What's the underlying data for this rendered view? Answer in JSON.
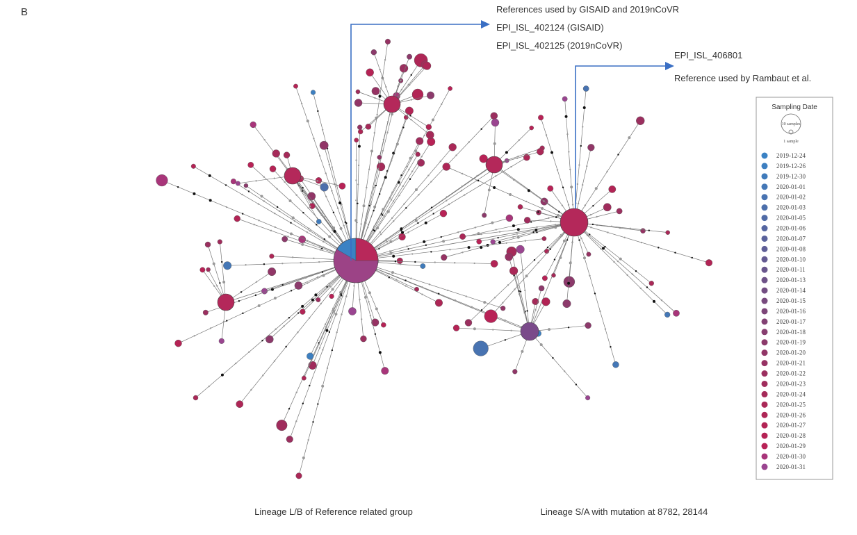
{
  "panel_label": "B",
  "annotations": {
    "gisaid_title": "References used by GISAID and 2019nCoVR",
    "gisaid_ref": "EPI_ISL_402124 (GISAID)",
    "ncovr_ref": "EPI_ISL_402125 (2019nCoVR)",
    "rambaut_ref": "EPI_ISL_406801",
    "rambaut_title": "Reference used by Rambaut et al."
  },
  "lineage_labels": [
    "Lineage L/B of Reference related group",
    "Lineage S/A with mutation at 8782, 28144"
  ],
  "legend": {
    "title": "Sampling Date",
    "size_labels": [
      "10 samples",
      "1 sample"
    ],
    "entries": [
      {
        "label": "2019-12-24",
        "color": "#3b82c4"
      },
      {
        "label": "2019-12-26",
        "color": "#3d7fc0"
      },
      {
        "label": "2019-12-30",
        "color": "#407bbb"
      },
      {
        "label": "2020-01-01",
        "color": "#4477b6"
      },
      {
        "label": "2020-01-02",
        "color": "#4873b1"
      },
      {
        "label": "2020-01-03",
        "color": "#4c6fab"
      },
      {
        "label": "2020-01-05",
        "color": "#506ba6"
      },
      {
        "label": "2020-01-06",
        "color": "#5566a1"
      },
      {
        "label": "2020-01-07",
        "color": "#5a629c"
      },
      {
        "label": "2020-01-08",
        "color": "#5f5e97"
      },
      {
        "label": "2020-01-10",
        "color": "#645a92"
      },
      {
        "label": "2020-01-11",
        "color": "#69568d"
      },
      {
        "label": "2020-01-13",
        "color": "#6e5288"
      },
      {
        "label": "2020-01-14",
        "color": "#734e83"
      },
      {
        "label": "2020-01-15",
        "color": "#784a7e"
      },
      {
        "label": "2020-01-16",
        "color": "#7d4679"
      },
      {
        "label": "2020-01-17",
        "color": "#824274"
      },
      {
        "label": "2020-01-18",
        "color": "#873e70"
      },
      {
        "label": "2020-01-19",
        "color": "#8c3a6b"
      },
      {
        "label": "2020-01-20",
        "color": "#913667"
      },
      {
        "label": "2020-01-21",
        "color": "#963263"
      },
      {
        "label": "2020-01-22",
        "color": "#9b2f5f"
      },
      {
        "label": "2020-01-23",
        "color": "#a02c5c"
      },
      {
        "label": "2020-01-24",
        "color": "#a52a59"
      },
      {
        "label": "2020-01-25",
        "color": "#aa2857"
      },
      {
        "label": "2020-01-26",
        "color": "#ae2656"
      },
      {
        "label": "2020-01-27",
        "color": "#b22455"
      },
      {
        "label": "2020-01-28",
        "color": "#b52355"
      },
      {
        "label": "2020-01-29",
        "color": "#b82256"
      },
      {
        "label": "2020-01-30",
        "color": "#a8357a"
      },
      {
        "label": "2020-01-31",
        "color": "#9a4590"
      }
    ]
  }
}
